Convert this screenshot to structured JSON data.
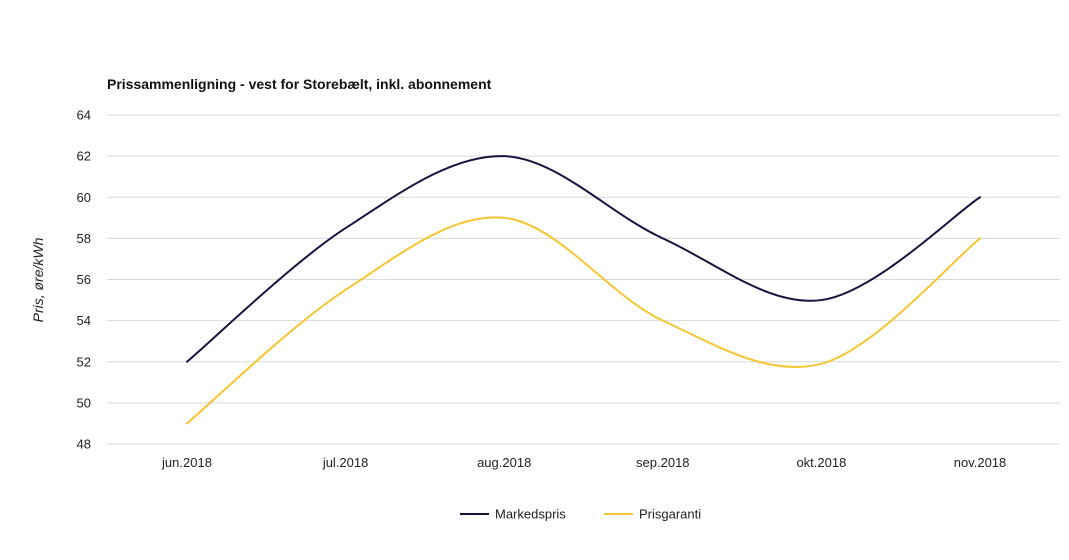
{
  "chart_data": {
    "type": "line",
    "title": "Prissammenligning - vest for Storebælt, inkl. abonnement",
    "xlabel": "",
    "ylabel": "Pris, øre/kWh",
    "categories": [
      "jun.2018",
      "jul.2018",
      "aug.2018",
      "sep.2018",
      "okt.2018",
      "nov.2018"
    ],
    "ylim": [
      48,
      64
    ],
    "yticks": [
      48,
      50,
      52,
      54,
      56,
      58,
      60,
      62,
      64
    ],
    "grid": true,
    "legend_position": "bottom-center",
    "series": [
      {
        "name": "Markedspris",
        "color": "#14143c",
        "values": [
          52,
          58.5,
          62,
          58,
          55,
          60
        ]
      },
      {
        "name": "Prisgaranti",
        "color": "#f6c531",
        "values": [
          49,
          55.5,
          59,
          54,
          51.9,
          58
        ]
      }
    ]
  }
}
